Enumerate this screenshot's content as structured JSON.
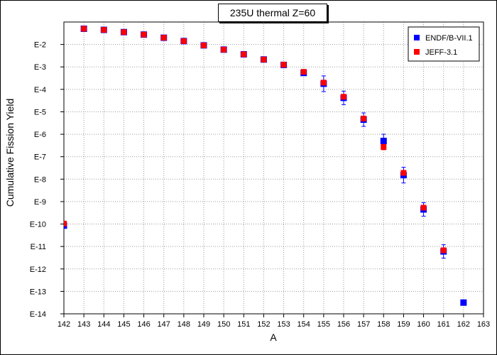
{
  "chart_data": {
    "type": "scatter",
    "title": "235U thermal Z=60",
    "xlabel": "A",
    "ylabel": "Cumulative Fission Yield",
    "xlim": [
      142,
      163
    ],
    "ylim": [
      -14,
      -1
    ],
    "yscale": "log10",
    "grid": true,
    "legend_position": "top-right",
    "x_ticks": [
      142,
      143,
      144,
      145,
      146,
      147,
      148,
      149,
      150,
      151,
      152,
      153,
      154,
      155,
      156,
      157,
      158,
      159,
      160,
      161,
      162,
      163
    ],
    "y_ticks": [
      {
        "exp": -2,
        "label": "E-2"
      },
      {
        "exp": -3,
        "label": "E-3"
      },
      {
        "exp": -4,
        "label": "E-4"
      },
      {
        "exp": -5,
        "label": "E-5"
      },
      {
        "exp": -6,
        "label": "E-6"
      },
      {
        "exp": -7,
        "label": "E-7"
      },
      {
        "exp": -8,
        "label": "E-8"
      },
      {
        "exp": -9,
        "label": "E-9"
      },
      {
        "exp": -10,
        "label": "E-10"
      },
      {
        "exp": -11,
        "label": "E-11"
      },
      {
        "exp": -12,
        "label": "E-12"
      },
      {
        "exp": -13,
        "label": "E-13"
      },
      {
        "exp": -14,
        "label": "E-14"
      }
    ],
    "series": [
      {
        "name": "ENDF/B-VII.1",
        "color": "#0000ff",
        "x": [
          142,
          143,
          144,
          145,
          146,
          147,
          148,
          149,
          150,
          151,
          152,
          153,
          154,
          155,
          156,
          157,
          158,
          159,
          160,
          161,
          162
        ],
        "log10_y": [
          -10.07,
          -1.3,
          -1.35,
          -1.45,
          -1.56,
          -1.7,
          -1.85,
          -2.04,
          -2.23,
          -2.44,
          -2.67,
          -2.91,
          -3.27,
          -3.75,
          -4.38,
          -5.35,
          -6.3,
          -7.82,
          -9.35,
          -11.22,
          -13.5
        ],
        "log10_err": [
          0,
          0,
          0,
          0,
          0,
          0,
          0,
          0,
          0,
          0,
          0,
          0,
          0,
          0.35,
          0.3,
          0.3,
          0.3,
          0.35,
          0.3,
          0.3,
          0
        ]
      },
      {
        "name": "JEFF-3.1",
        "color": "#ff0000",
        "x": [
          142,
          143,
          144,
          145,
          146,
          147,
          148,
          149,
          150,
          151,
          152,
          153,
          154,
          155,
          156,
          157,
          158,
          159,
          160,
          161
        ],
        "log10_y": [
          -9.98,
          -1.3,
          -1.35,
          -1.45,
          -1.56,
          -1.7,
          -1.85,
          -2.04,
          -2.23,
          -2.44,
          -2.67,
          -2.9,
          -3.22,
          -3.7,
          -4.33,
          -5.3,
          -6.57,
          -7.72,
          -9.27,
          -11.17
        ],
        "log10_err": [
          0,
          0,
          0,
          0,
          0,
          0,
          0,
          0,
          0,
          0,
          0,
          0,
          0,
          0,
          0,
          0,
          0.12,
          0.1,
          0.1,
          0.1
        ]
      }
    ]
  }
}
